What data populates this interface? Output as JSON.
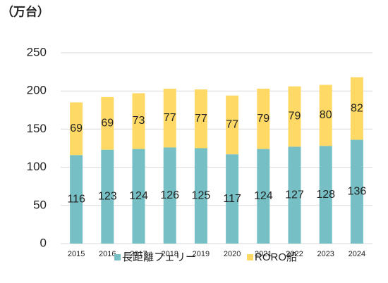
{
  "chart_data": {
    "type": "stacked_bar",
    "unit_label": "（万台）",
    "categories": [
      "2015",
      "2016",
      "2017",
      "2018",
      "2019",
      "2020",
      "2021",
      "2022",
      "2023",
      "2024"
    ],
    "series": [
      {
        "name": "長距離フェリー",
        "color": "#76bfc4",
        "values": [
          116,
          123,
          124,
          126,
          125,
          117,
          124,
          127,
          128,
          136
        ]
      },
      {
        "name": "RORO船",
        "color": "#ffd966",
        "values": [
          69,
          69,
          73,
          77,
          77,
          77,
          79,
          79,
          80,
          82
        ]
      }
    ],
    "ylim": [
      0,
      250
    ],
    "yticks": [
      0,
      50,
      100,
      150,
      200,
      250
    ],
    "grid": true,
    "legend": "bottom"
  }
}
